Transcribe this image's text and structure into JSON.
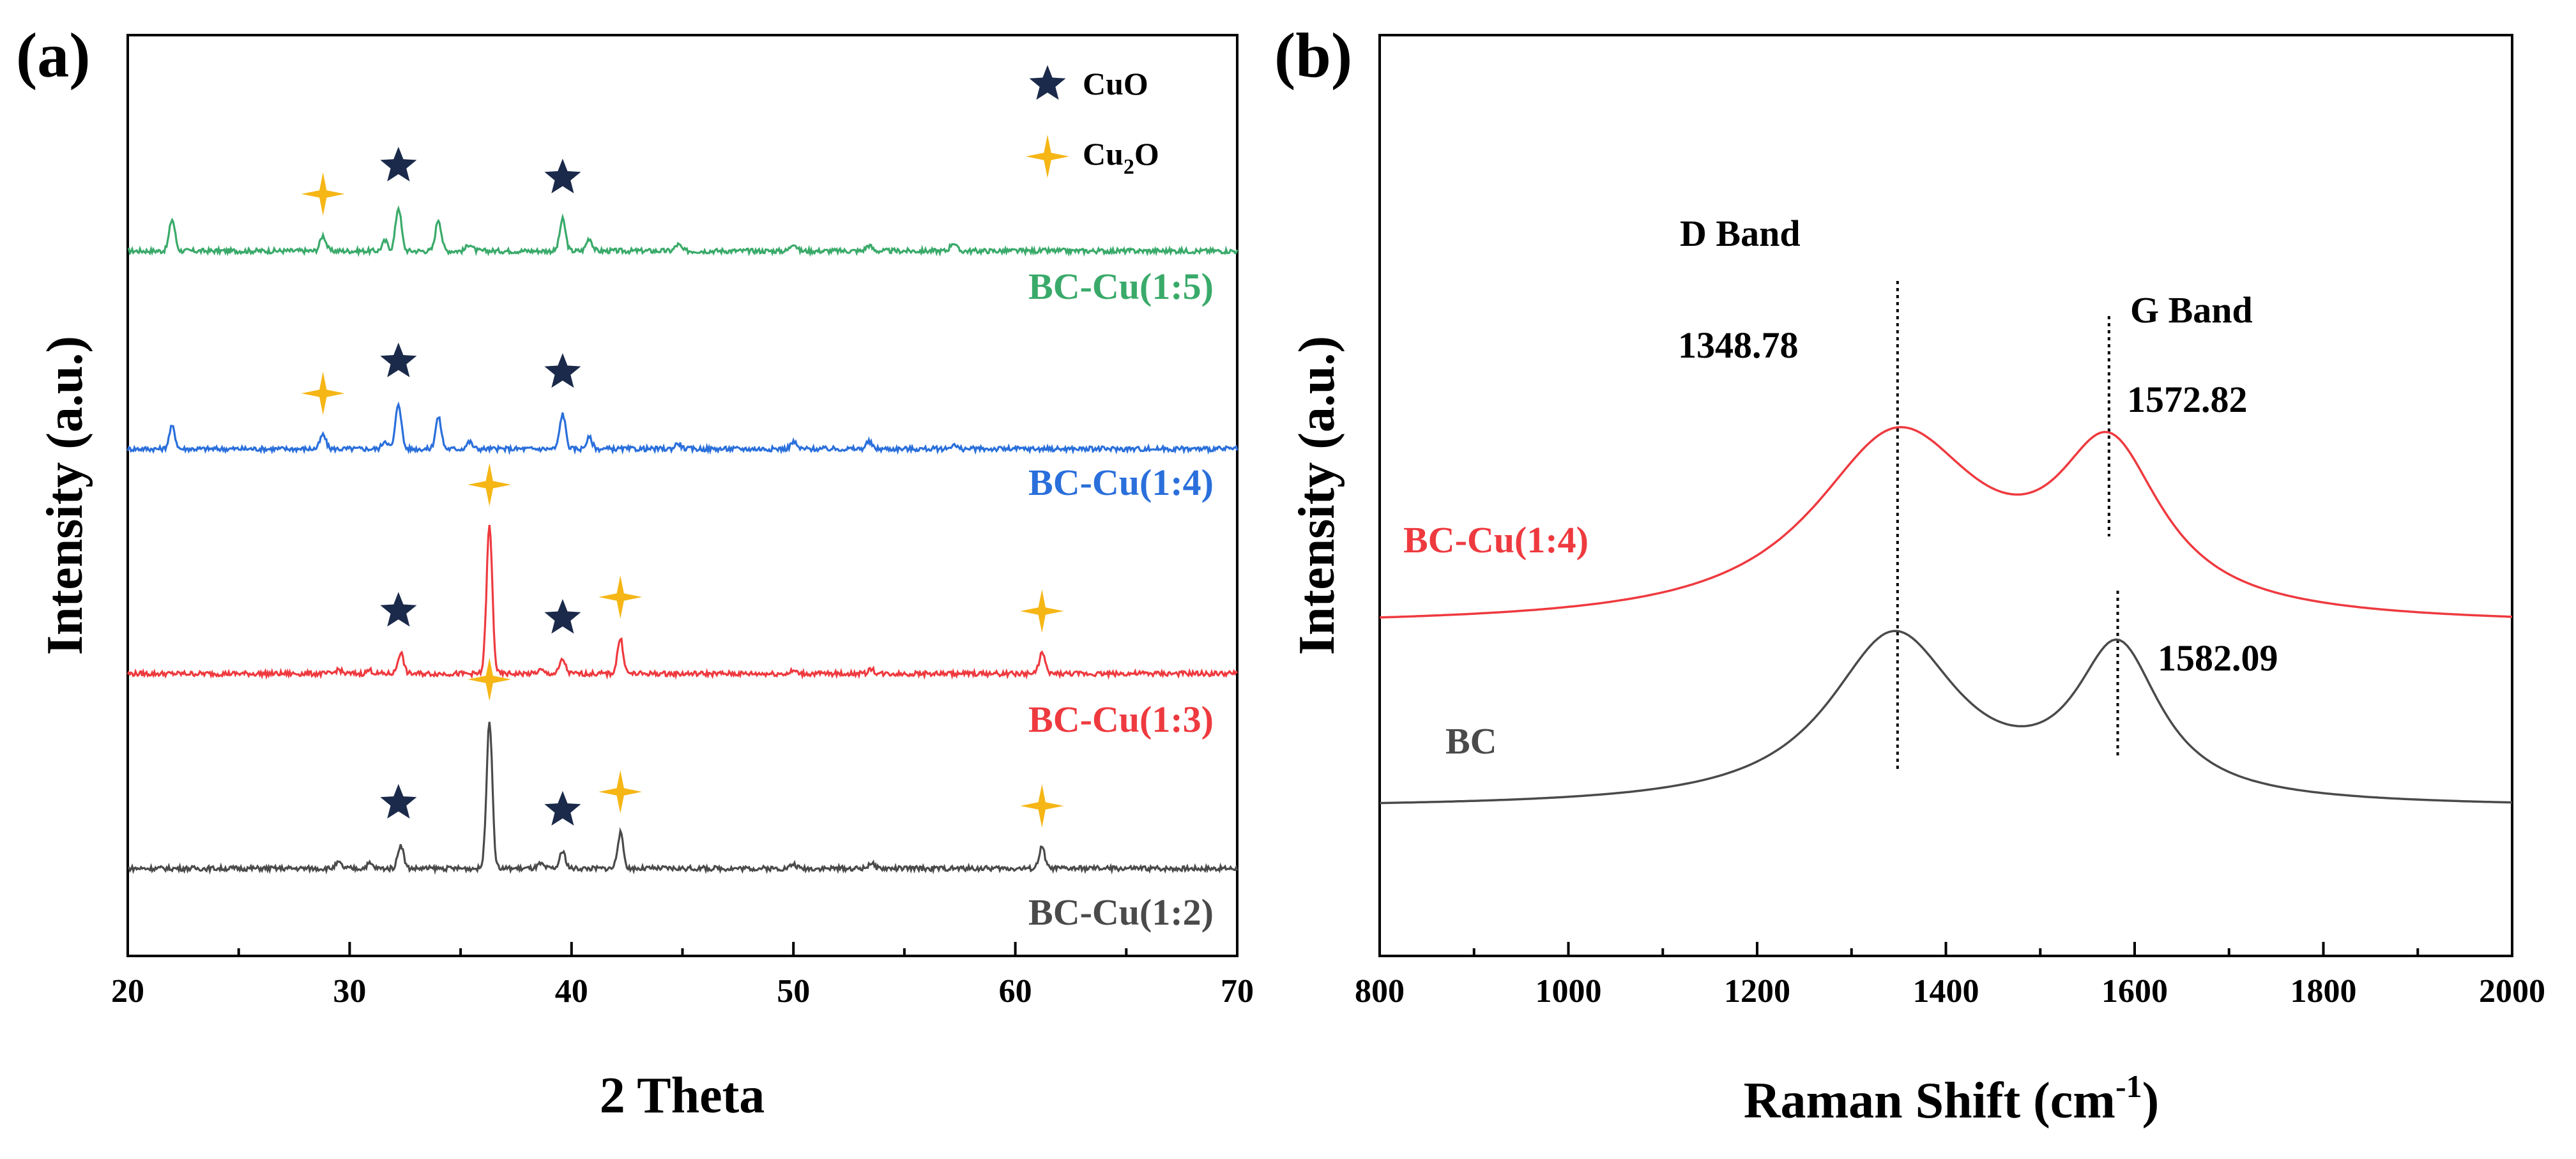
{
  "figure": {
    "colors": {
      "green": "#3aaa6a",
      "blue": "#2a6fdb",
      "red": "#ee3a3f",
      "gray": "#4a4a4a",
      "star_dark": "#1b2a4a",
      "star_gold": "#f5b616"
    },
    "panel_a": {
      "label": "(a)",
      "xlabel": "2 Theta",
      "ylabel": "Intensity (a.u.)",
      "legend": [
        {
          "marker": "star5",
          "label": "CuO",
          "color": "#1b2a4a"
        },
        {
          "marker": "star4",
          "label": "Cu",
          "sub": "2",
          "tail": "O",
          "color": "#f5b616"
        }
      ]
    },
    "panel_b": {
      "label": "(b)",
      "xlabel": "Raman Shift (cm",
      "xlabel_sup": "-1",
      "xlabel_close": ")",
      "ylabel": "Intensity (a.u.)",
      "annotations": {
        "d_band": "D Band",
        "d_value": "1348.78",
        "g_band": "G Band",
        "g_value": "1572.82",
        "bc_g_value": "1582.09"
      }
    }
  },
  "chart_data": [
    {
      "type": "line",
      "title": "(a)",
      "xlabel": "2 Theta",
      "ylabel": "Intensity (a.u.)",
      "xlim": [
        20,
        70
      ],
      "xticks": [
        20,
        30,
        40,
        50,
        60,
        70
      ],
      "yticks_visible": false,
      "series": [
        {
          "name": "BC-Cu(1:5)",
          "color": "#3aaa6a",
          "offset": 3,
          "peaks": [
            [
              22.0,
              0.45
            ],
            [
              28.8,
              0.22
            ],
            [
              31.6,
              0.14
            ],
            [
              32.2,
              0.62
            ],
            [
              34.0,
              0.45
            ],
            [
              35.4,
              0.1
            ],
            [
              39.6,
              0.45
            ],
            [
              40.8,
              0.18
            ],
            [
              44.8,
              0.09
            ],
            [
              50.0,
              0.11
            ],
            [
              53.4,
              0.08
            ],
            [
              57.2,
              0.12
            ]
          ],
          "markers": [
            {
              "x": 28.8,
              "type": "Cu2O"
            },
            {
              "x": 32.2,
              "type": "CuO"
            },
            {
              "x": 39.6,
              "type": "CuO"
            }
          ]
        },
        {
          "name": "BC-Cu(1:4)",
          "color": "#2a6fdb",
          "offset": 2,
          "peaks": [
            [
              22.0,
              0.32
            ],
            [
              28.8,
              0.2
            ],
            [
              31.6,
              0.12
            ],
            [
              32.2,
              0.65
            ],
            [
              34.0,
              0.45
            ],
            [
              35.4,
              0.1
            ],
            [
              39.6,
              0.5
            ],
            [
              40.8,
              0.16
            ],
            [
              44.8,
              0.08
            ],
            [
              50.0,
              0.1
            ],
            [
              53.4,
              0.1
            ],
            [
              57.2,
              0.06
            ]
          ],
          "markers": [
            {
              "x": 28.8,
              "type": "Cu2O"
            },
            {
              "x": 32.2,
              "type": "CuO"
            },
            {
              "x": 39.6,
              "type": "CuO"
            }
          ]
        },
        {
          "name": "BC-Cu(1:3)",
          "color": "#ee3a3f",
          "offset": 1,
          "peaks": [
            [
              29.5,
              0.06
            ],
            [
              30.9,
              0.05
            ],
            [
              32.3,
              0.3
            ],
            [
              36.3,
              2.1
            ],
            [
              38.6,
              0.05
            ],
            [
              39.6,
              0.2
            ],
            [
              42.2,
              0.5
            ],
            [
              50.0,
              0.04
            ],
            [
              53.5,
              0.07
            ],
            [
              61.2,
              0.3
            ]
          ],
          "markers": [
            {
              "x": 32.2,
              "type": "CuO"
            },
            {
              "x": 36.3,
              "type": "Cu2O"
            },
            {
              "x": 39.6,
              "type": "CuO"
            },
            {
              "x": 42.2,
              "type": "Cu2O"
            },
            {
              "x": 61.2,
              "type": "Cu2O"
            }
          ]
        },
        {
          "name": "BC-Cu(1:2)",
          "color": "#4a4a4a",
          "offset": 0,
          "peaks": [
            [
              29.5,
              0.08
            ],
            [
              30.9,
              0.07
            ],
            [
              32.3,
              0.34
            ],
            [
              36.3,
              2.1
            ],
            [
              38.6,
              0.06
            ],
            [
              39.6,
              0.24
            ],
            [
              42.2,
              0.5
            ],
            [
              50.0,
              0.06
            ],
            [
              53.5,
              0.08
            ],
            [
              61.2,
              0.3
            ]
          ],
          "markers": [
            {
              "x": 32.2,
              "type": "CuO"
            },
            {
              "x": 36.3,
              "type": "Cu2O"
            },
            {
              "x": 39.6,
              "type": "CuO"
            },
            {
              "x": 42.2,
              "type": "Cu2O"
            },
            {
              "x": 61.2,
              "type": "Cu2O"
            }
          ]
        }
      ]
    },
    {
      "type": "line",
      "title": "(b)",
      "xlabel": "Raman Shift (cm-1)",
      "ylabel": "Intensity (a.u.)",
      "xlim": [
        800,
        2000
      ],
      "xticks": [
        800,
        1000,
        1200,
        1400,
        1600,
        1800,
        2000
      ],
      "yticks_visible": false,
      "series": [
        {
          "name": "BC-Cu(1:4)",
          "color": "#ee3a3f",
          "baseline": 1.0,
          "bands": [
            {
              "center": 1348.78,
              "amp": 1.0,
              "sigma": 110
            },
            {
              "center": 1572.82,
              "amp": 0.85,
              "sigma": 68
            }
          ]
        },
        {
          "name": "BC",
          "color": "#4a4a4a",
          "baseline": 0.0,
          "bands": [
            {
              "center": 1345,
              "amp": 1.0,
              "sigma": 85
            },
            {
              "center": 1582.09,
              "amp": 0.88,
              "sigma": 55
            }
          ]
        }
      ],
      "vlines": [
        1348.78,
        1572.82,
        1582.09
      ]
    }
  ]
}
